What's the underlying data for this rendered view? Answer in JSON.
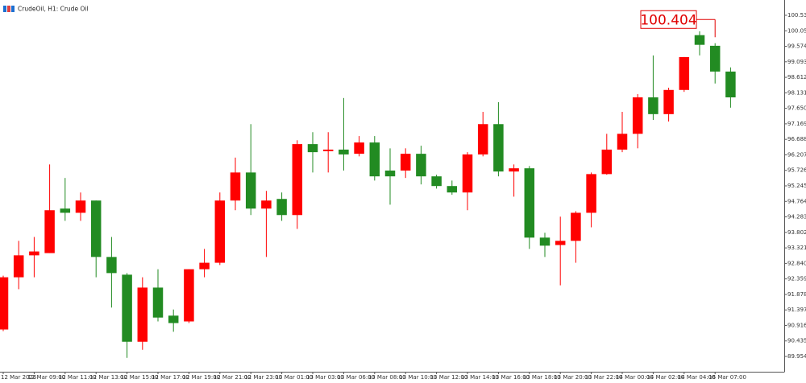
{
  "chart_data": {
    "type": "candlestick",
    "title": "CrudeOil, H1: Crude Oil",
    "categories": [
      "12 Mar 2026",
      null,
      "12 Mar 09:00",
      null,
      "12 Mar 11:00",
      null,
      "12 Mar 13:00",
      null,
      "12 Mar 15:00",
      null,
      "12 Mar 17:00",
      null,
      "12 Mar 19:00",
      null,
      "12 Mar 21:00",
      null,
      "12 Mar 23:00",
      null,
      "13 Mar 01:00",
      null,
      "13 Mar 03:00",
      null,
      "13 Mar 06:00",
      null,
      "13 Mar 08:00",
      null,
      "13 Mar 10:00",
      null,
      "13 Mar 12:00",
      null,
      "13 Mar 14:00",
      null,
      "13 Mar 16:00",
      null,
      "13 Mar 18:00",
      null,
      "13 Mar 20:00",
      null,
      "13 Mar 22:00",
      null,
      "14 Mar 00:00",
      null,
      "14 Mar 02:00",
      null,
      "14 Mar 04:00",
      null,
      "16 Mar 07:00",
      null
    ],
    "open": [
      90.79,
      92.41,
      93.09,
      93.16,
      94.54,
      94.41,
      94.79,
      93.04,
      92.49,
      90.41,
      92.09,
      91.22,
      91.04,
      92.66,
      92.86,
      94.79,
      95.66,
      94.54,
      94.84,
      94.34,
      96.54,
      96.32,
      96.37,
      96.24,
      96.59,
      95.72,
      95.72,
      96.24,
      95.54,
      95.24,
      95.04,
      96.22,
      97.16,
      95.69,
      95.79,
      93.64,
      93.41,
      93.54,
      94.41,
      95.61,
      96.37,
      96.86,
      97.99,
      97.47,
      98.22,
      99.92,
      99.59,
      98.79
    ],
    "high": [
      92.46,
      93.54,
      93.66,
      95.91,
      95.49,
      95.04,
      94.79,
      93.66,
      92.54,
      92.41,
      92.66,
      91.41,
      92.66,
      93.29,
      95.04,
      96.12,
      97.16,
      95.09,
      95.04,
      96.66,
      96.91,
      96.91,
      97.97,
      96.79,
      96.79,
      96.41,
      96.41,
      96.49,
      95.59,
      95.41,
      96.29,
      97.54,
      97.84,
      95.91,
      95.86,
      93.79,
      94.29,
      94.46,
      95.66,
      96.86,
      97.54,
      98.09,
      99.29,
      98.29,
      99.24,
      100.04,
      99.67,
      98.92
    ],
    "low": [
      90.74,
      92.04,
      92.41,
      93.16,
      94.16,
      94.16,
      92.41,
      91.47,
      89.91,
      90.16,
      91.04,
      90.72,
      90.99,
      92.41,
      92.79,
      94.49,
      94.34,
      93.04,
      94.16,
      93.91,
      95.66,
      95.66,
      95.72,
      96.16,
      95.41,
      94.66,
      95.49,
      95.29,
      95.16,
      94.97,
      94.49,
      96.16,
      95.54,
      94.91,
      93.29,
      93.04,
      92.16,
      92.86,
      93.96,
      95.59,
      96.29,
      96.41,
      97.29,
      97.24,
      98.16,
      99.29,
      98.42,
      97.67
    ],
    "close": [
      92.41,
      93.09,
      93.21,
      94.49,
      94.41,
      94.79,
      93.04,
      92.54,
      90.41,
      92.09,
      91.16,
      90.99,
      92.66,
      92.86,
      94.79,
      95.66,
      94.54,
      94.79,
      94.34,
      96.54,
      96.29,
      96.37,
      96.22,
      96.59,
      95.54,
      95.54,
      96.24,
      95.54,
      95.24,
      95.04,
      96.22,
      97.16,
      95.69,
      95.79,
      93.64,
      93.39,
      93.54,
      94.41,
      95.61,
      96.37,
      96.86,
      97.99,
      97.47,
      98.22,
      99.24,
      99.62,
      98.79,
      97.99
    ],
    "up_color": "#ff0000",
    "down_color": "#228b22",
    "last_price": 100.404,
    "last_price_color": "#e00000",
    "ylim": [
      89.48,
      100.91
    ],
    "yticks": [
      100.536,
      100.055,
      99.574,
      99.093,
      98.612,
      98.131,
      {
        "value": 97.65,
        "label": "97.650"
      },
      97.169,
      96.688,
      96.207,
      95.726,
      95.245,
      94.764,
      94.283,
      93.802,
      93.321,
      {
        "value": 92.84,
        "label": "92.840"
      },
      92.359,
      91.878,
      91.397,
      90.916,
      90.435,
      89.954
    ]
  }
}
